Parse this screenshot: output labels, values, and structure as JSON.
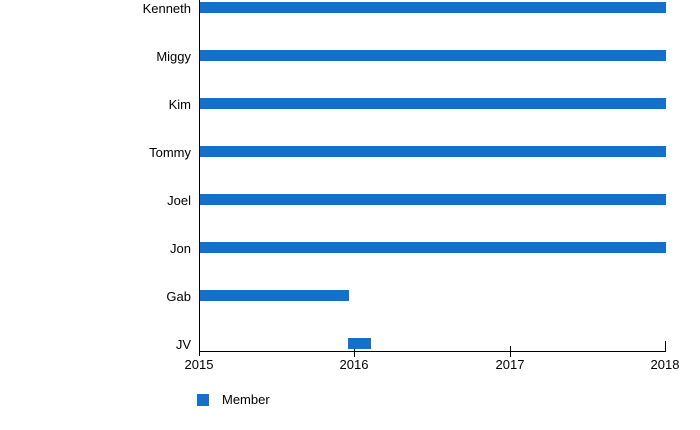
{
  "chart_data": {
    "type": "bar",
    "orientation": "horizontal",
    "title": "",
    "categories": [
      "Kenneth",
      "Miggy",
      "Kim",
      "Tommy",
      "Joel",
      "Jon",
      "Gab",
      "JV"
    ],
    "series": [
      {
        "name": "Member",
        "color": "#1570CC",
        "ranges": [
          {
            "start": 2015,
            "end": 2018
          },
          {
            "start": 2015,
            "end": 2018
          },
          {
            "start": 2015,
            "end": 2018
          },
          {
            "start": 2015,
            "end": 2018
          },
          {
            "start": 2015,
            "end": 2018
          },
          {
            "start": 2015,
            "end": 2018
          },
          {
            "start": 2015,
            "end": 2015.96
          },
          {
            "start": 2015.95,
            "end": 2016.1
          }
        ]
      }
    ],
    "xlabel": "",
    "ylabel": "",
    "xlim": [
      2015,
      2018
    ],
    "x_ticks": [
      "2015",
      "2016",
      "2017",
      "2018"
    ],
    "grid": false,
    "axis_color": "#000000",
    "text_color": "#000000",
    "legend": {
      "position": "bottom-left",
      "entries": [
        {
          "label": "Member",
          "color": "#1570CC"
        }
      ]
    }
  }
}
